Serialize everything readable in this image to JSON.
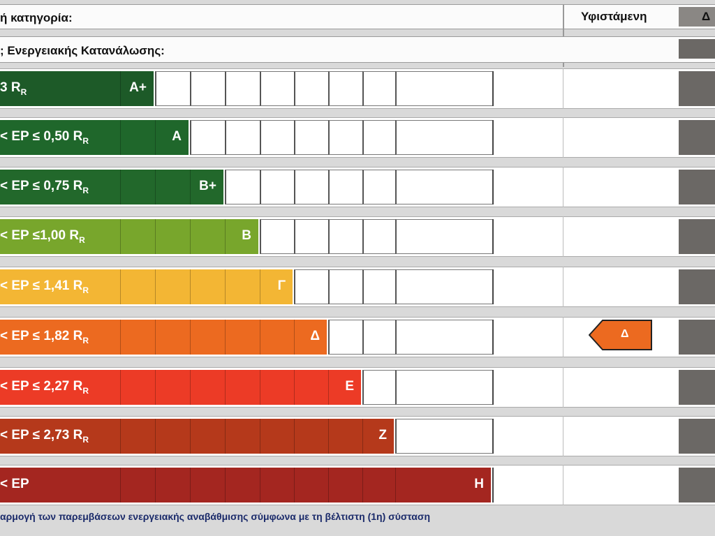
{
  "header": {
    "category_label": "ή κατηγορία:",
    "existing": "Υφιστάμενη",
    "proposed": "Δ"
  },
  "consumption_label": "; Ενεργειακής Κατανάλωσης:",
  "rows": [
    {
      "label": "3 R",
      "sub": "R",
      "class": "A+",
      "color": "#1d5a28"
    },
    {
      "label": "< EP ≤ 0,50 R",
      "sub": "R",
      "class": "A",
      "color": "#1f672b"
    },
    {
      "label": "< EP ≤ 0,75 R",
      "sub": "R",
      "class": "B+",
      "color": "#22682b"
    },
    {
      "label": "< EP ≤1,00 R",
      "sub": "R",
      "class": "B",
      "color": "#78a62c"
    },
    {
      "label": "< EP ≤ 1,41 R",
      "sub": "R",
      "class": "Γ",
      "color": "#f3b634"
    },
    {
      "label": "< EP ≤ 1,82 R",
      "sub": "R",
      "class": "Δ",
      "color": "#ec6a20"
    },
    {
      "label": "< EP ≤ 2,27 R",
      "sub": "R",
      "class": "E",
      "color": "#ec3b26"
    },
    {
      "label": "< EP ≤ 2,73 R",
      "sub": "R",
      "class": "Z",
      "color": "#b5391b"
    },
    {
      "label": "< EP",
      "sub": null,
      "class": "H",
      "color": "#a42620"
    }
  ],
  "current_class_marker": "Δ",
  "footer": "αρμογή των παρεμβάσεων ενεργειακής αναβάθμισης σύμφωνα με τη βέλτιστη (1η) σύσταση"
}
